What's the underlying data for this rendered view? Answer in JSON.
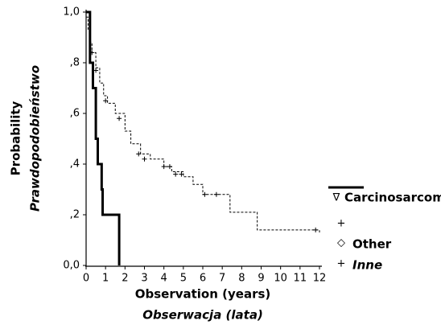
{
  "chart_data": {
    "type": "step",
    "xlabel": "Observation (years)",
    "xlabel2": "Obserwacja (lata)",
    "ylabel": "Probability",
    "ylabel2": "Prawdopodobieństwo",
    "xlim": [
      0,
      12
    ],
    "ylim": [
      0,
      1
    ],
    "xticks": [
      0,
      1,
      2,
      3,
      4,
      5,
      6,
      7,
      8,
      9,
      10,
      11,
      12
    ],
    "yticks": [
      {
        "value": 0,
        "label": "0,0"
      },
      {
        "value": 0.2,
        "label": ",2"
      },
      {
        "value": 0.4,
        "label": ",4"
      },
      {
        "value": 0.6,
        "label": ",6"
      },
      {
        "value": 0.8,
        "label": ",8"
      },
      {
        "value": 1,
        "label": "1,0"
      }
    ],
    "series": [
      {
        "name": "Carcinosarcoma",
        "color": "#000000",
        "style": "solid",
        "x": [
          0,
          0.2,
          0.35,
          0.5,
          0.6,
          0.8,
          0.85,
          1.7
        ],
        "values": [
          1.0,
          0.8,
          0.7,
          0.5,
          0.4,
          0.3,
          0.2,
          0.0
        ]
      },
      {
        "name": "Other",
        "color": "#000000",
        "style": "dashed",
        "x": [
          0,
          0.1,
          0.2,
          0.3,
          0.5,
          0.7,
          0.9,
          1.1,
          1.5,
          2.0,
          2.3,
          2.8,
          3.3,
          4.0,
          4.4,
          5.0,
          5.5,
          6.0,
          7.4,
          8.8,
          12
        ],
        "values": [
          0.98,
          0.93,
          0.88,
          0.84,
          0.78,
          0.72,
          0.67,
          0.64,
          0.6,
          0.53,
          0.48,
          0.44,
          0.42,
          0.39,
          0.37,
          0.35,
          0.32,
          0.28,
          0.21,
          0.14,
          0.13
        ]
      }
    ],
    "censored": {
      "x": [
        0.3,
        0.5,
        1.0,
        1.7,
        2.7,
        3.0,
        4.0,
        4.3,
        4.6,
        4.9,
        6.1,
        6.7,
        11.8
      ],
      "values": [
        0.84,
        0.77,
        0.65,
        0.58,
        0.44,
        0.42,
        0.39,
        0.39,
        0.36,
        0.36,
        0.28,
        0.28,
        0.14
      ]
    },
    "legend": [
      {
        "symbol": "∇"
      },
      {
        "symbol": "+"
      },
      {
        "symbol": "◇"
      },
      {
        "symbol": "+",
        "label": "Inne"
      }
    ]
  }
}
